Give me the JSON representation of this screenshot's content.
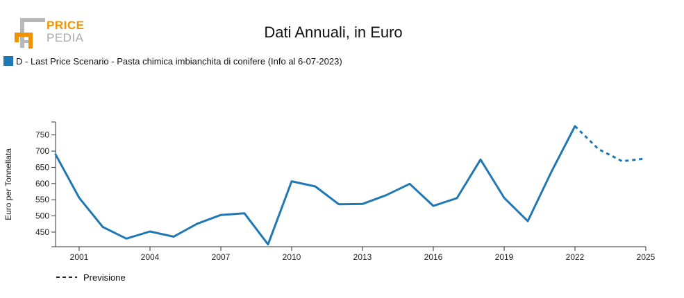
{
  "logo": {
    "line1": "PRICE",
    "line2": "PEDIA",
    "colors": {
      "orange": "#f39200",
      "grey": "#b8b8b8",
      "text_orange": "#f39200",
      "text_grey": "#aaaaaa"
    }
  },
  "colors": {
    "series": "#1f77b4",
    "axis": "#333333",
    "forecast_legend": "#222222"
  },
  "chart_data": {
    "type": "line",
    "title": "Dati Annuali, in Euro",
    "ylabel": "Euro per Tonnellata",
    "xlabel": "",
    "legend": {
      "series_label": "D - Last Price Scenario - Pasta chimica imbianchita di conifere (Info al 6-07-2023)",
      "forecast_label": "Previsione",
      "placement": "top-left"
    },
    "x_ticks": [
      2001,
      2004,
      2007,
      2010,
      2013,
      2016,
      2019,
      2022,
      2025
    ],
    "y_ticks": [
      450,
      500,
      550,
      600,
      650,
      700,
      750
    ],
    "xlim": [
      2000,
      2025
    ],
    "ylim": [
      405,
      790
    ],
    "grid": false,
    "series": [
      {
        "name": "D - Last Price Scenario - Pasta chimica imbianchita di conifere (Info al 6-07-2023)",
        "style": "solid",
        "x": [
          2000,
          2001,
          2002,
          2003,
          2004,
          2005,
          2006,
          2007,
          2008,
          2009,
          2010,
          2011,
          2012,
          2013,
          2014,
          2015,
          2016,
          2017,
          2018,
          2019,
          2020,
          2021,
          2022
        ],
        "y": [
          690,
          556,
          466,
          430,
          452,
          436,
          476,
          503,
          508,
          412,
          607,
          591,
          536,
          537,
          564,
          599,
          531,
          555,
          674,
          556,
          484,
          636,
          777
        ]
      },
      {
        "name": "Previsione",
        "style": "dashed",
        "x": [
          2022,
          2023,
          2024,
          2025
        ],
        "y": [
          777,
          706,
          669,
          677
        ]
      }
    ]
  }
}
